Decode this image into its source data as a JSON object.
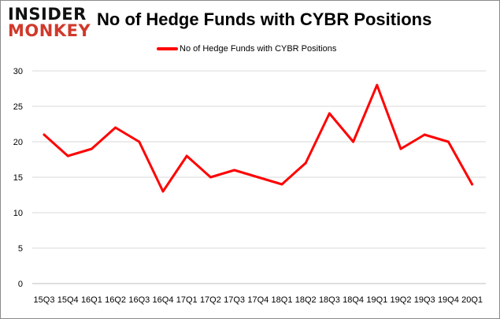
{
  "logo": {
    "line1": "INSIDER",
    "line2": "MONKEY"
  },
  "chart_data": {
    "type": "line",
    "title": "No of Hedge Funds with CYBR Positions",
    "xlabel": "",
    "ylabel": "",
    "categories": [
      "15Q3",
      "15Q4",
      "16Q1",
      "16Q2",
      "16Q3",
      "16Q4",
      "17Q1",
      "17Q2",
      "17Q3",
      "17Q4",
      "18Q1",
      "18Q2",
      "18Q3",
      "18Q4",
      "19Q1",
      "19Q2",
      "19Q3",
      "19Q4",
      "20Q1"
    ],
    "series": [
      {
        "name": "No of Hedge Funds with CYBR Positions",
        "color": "#ff0000",
        "values": [
          21,
          18,
          19,
          22,
          20,
          13,
          18,
          15,
          16,
          15,
          14,
          17,
          24,
          20,
          28,
          19,
          21,
          20,
          14
        ]
      }
    ],
    "ylim": [
      0,
      30
    ],
    "yticks": [
      0,
      5,
      10,
      15,
      20,
      25,
      30
    ],
    "grid": true,
    "legend": "top-center"
  }
}
